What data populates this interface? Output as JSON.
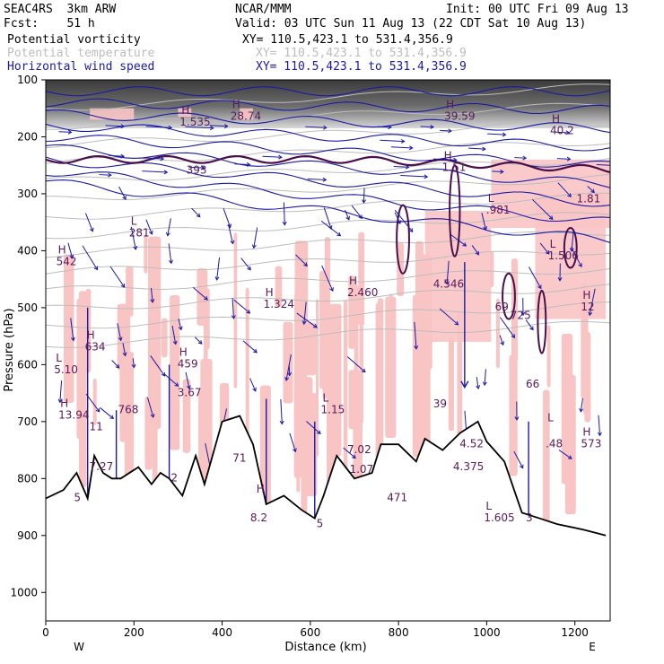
{
  "header": {
    "experiment": "SEAC4RS  3km ARW",
    "org": "NCAR/MMM",
    "init": "Init: 00 UTC Fri 09 Aug 13",
    "fcst": "Fcst:    51 h",
    "valid": "Valid: 03 UTC Sun 11 Aug 13 (22 CDT Sat 10 Aug 13)",
    "fields": [
      {
        "name": "Potential vorticity",
        "xy": "XY= 110.5,423.1 to 531.4,356.9",
        "color": "#000000"
      },
      {
        "name": "Potential temperature",
        "xy": "XY= 110.5,423.1 to 531.4,356.9",
        "color": "#bdbdbd"
      },
      {
        "name": "Horizontal wind speed",
        "xy": "XY= 110.5,423.1 to 531.4,356.9",
        "color": "#1a1aa6"
      }
    ]
  },
  "chart_data": {
    "type": "cross-section",
    "xlabel": "Distance (km)",
    "ylabel": "Pressure (hPa)",
    "xlim": [
      0,
      1280
    ],
    "ylim": [
      1050,
      100
    ],
    "x_ticks": [
      "0",
      "200",
      "400",
      "600",
      "800",
      "1000",
      "1200"
    ],
    "y_ticks": [
      "100",
      "200",
      "300",
      "400",
      "500",
      "600",
      "700",
      "800",
      "900",
      "1000"
    ],
    "x_tick_values": [
      0,
      200,
      400,
      600,
      800,
      1000,
      1200
    ],
    "y_tick_values": [
      100,
      200,
      300,
      400,
      500,
      600,
      700,
      800,
      900,
      1000
    ],
    "end_labels": {
      "left": "W",
      "right": "E"
    },
    "terrain": [
      [
        0,
        835
      ],
      [
        40,
        820
      ],
      [
        70,
        790
      ],
      [
        95,
        835
      ],
      [
        110,
        760
      ],
      [
        130,
        790
      ],
      [
        150,
        800
      ],
      [
        170,
        800
      ],
      [
        210,
        780
      ],
      [
        240,
        810
      ],
      [
        260,
        790
      ],
      [
        280,
        800
      ],
      [
        310,
        830
      ],
      [
        340,
        760
      ],
      [
        360,
        810
      ],
      [
        400,
        700
      ],
      [
        440,
        690
      ],
      [
        470,
        740
      ],
      [
        500,
        845
      ],
      [
        540,
        830
      ],
      [
        580,
        855
      ],
      [
        610,
        870
      ],
      [
        630,
        830
      ],
      [
        660,
        760
      ],
      [
        700,
        800
      ],
      [
        740,
        790
      ],
      [
        760,
        740
      ],
      [
        800,
        740
      ],
      [
        840,
        770
      ],
      [
        860,
        730
      ],
      [
        900,
        750
      ],
      [
        940,
        720
      ],
      [
        980,
        700
      ],
      [
        1000,
        735
      ],
      [
        1040,
        770
      ],
      [
        1080,
        860
      ],
      [
        1120,
        870
      ],
      [
        1160,
        880
      ],
      [
        1220,
        890
      ],
      [
        1270,
        900
      ]
    ],
    "extrema_labels": [
      {
        "kind": "H",
        "value": "1.535",
        "x": 320,
        "p": 180
      },
      {
        "kind": "H",
        "value": "28.74",
        "x": 435,
        "p": 170
      },
      {
        "kind": "H",
        "value": "39.59",
        "x": 920,
        "p": 170
      },
      {
        "kind": "H",
        "value": "40.2",
        "x": 1160,
        "p": 195
      },
      {
        "kind": "",
        "value": "393",
        "x": 335,
        "p": 265
      },
      {
        "kind": "H",
        "value": "1.51",
        "x": 915,
        "p": 260
      },
      {
        "kind": "L",
        "value": ".981",
        "x": 1015,
        "p": 335
      },
      {
        "kind": "",
        "value": "1.81",
        "x": 1220,
        "p": 315
      },
      {
        "kind": "L",
        "value": "281",
        "x": 205,
        "p": 375
      },
      {
        "kind": "H",
        "value": "542",
        "x": 40,
        "p": 425
      },
      {
        "kind": "L",
        "value": "1.506",
        "x": 1155,
        "p": 415
      },
      {
        "kind": "H",
        "value": "1.324",
        "x": 510,
        "p": 500
      },
      {
        "kind": "H",
        "value": "2.460",
        "x": 700,
        "p": 480
      },
      {
        "kind": "",
        "value": "4.546",
        "x": 895,
        "p": 465
      },
      {
        "kind": "H",
        "value": "12",
        "x": 1230,
        "p": 505
      },
      {
        "kind": "",
        "value": "69",
        "x": 1035,
        "p": 505
      },
      {
        "kind": "",
        "value": "725",
        "x": 1070,
        "p": 520
      },
      {
        "kind": "H",
        "value": "634",
        "x": 105,
        "p": 575
      },
      {
        "kind": "L",
        "value": "5.10",
        "x": 35,
        "p": 615
      },
      {
        "kind": "H",
        "value": "459",
        "x": 315,
        "p": 605
      },
      {
        "kind": "",
        "value": "3.67",
        "x": 315,
        "p": 655
      },
      {
        "kind": "",
        "value": "66",
        "x": 1105,
        "p": 640
      },
      {
        "kind": "",
        "value": "768",
        "x": 180,
        "p": 685
      },
      {
        "kind": "H",
        "value": "13.94",
        "x": 45,
        "p": 695
      },
      {
        "kind": "L",
        "value": "1.15",
        "x": 640,
        "p": 685
      },
      {
        "kind": "",
        "value": "39",
        "x": 895,
        "p": 675
      },
      {
        "kind": "",
        "value": "11",
        "x": 115,
        "p": 715
      },
      {
        "kind": "L",
        "value": "",
        "x": 1150,
        "p": 720
      },
      {
        "kind": "H",
        "value": "573",
        "x": 1230,
        "p": 745
      },
      {
        "kind": "",
        "value": ".48",
        "x": 1150,
        "p": 745
      },
      {
        "kind": "",
        "value": "7.27",
        "x": 115,
        "p": 785
      },
      {
        "kind": "",
        "value": "7.02",
        "x": 700,
        "p": 755
      },
      {
        "kind": "",
        "value": "1.07",
        "x": 705,
        "p": 790
      },
      {
        "kind": "",
        "value": "4.52",
        "x": 955,
        "p": 745
      },
      {
        "kind": "",
        "value": "4.375",
        "x": 940,
        "p": 785
      },
      {
        "kind": "",
        "value": "2",
        "x": 300,
        "p": 805
      },
      {
        "kind": "",
        "value": "71",
        "x": 440,
        "p": 770
      },
      {
        "kind": "",
        "value": "471",
        "x": 790,
        "p": 840
      },
      {
        "kind": "H",
        "value": "",
        "x": 490,
        "p": 845
      },
      {
        "kind": "",
        "value": "8.2",
        "x": 480,
        "p": 875
      },
      {
        "kind": "",
        "value": "5",
        "x": 630,
        "p": 885
      },
      {
        "kind": "L",
        "value": "1.605",
        "x": 1010,
        "p": 875
      },
      {
        "kind": "",
        "value": "3",
        "x": 1105,
        "p": 875
      },
      {
        "kind": "",
        "value": "5",
        "x": 80,
        "p": 840
      }
    ]
  }
}
